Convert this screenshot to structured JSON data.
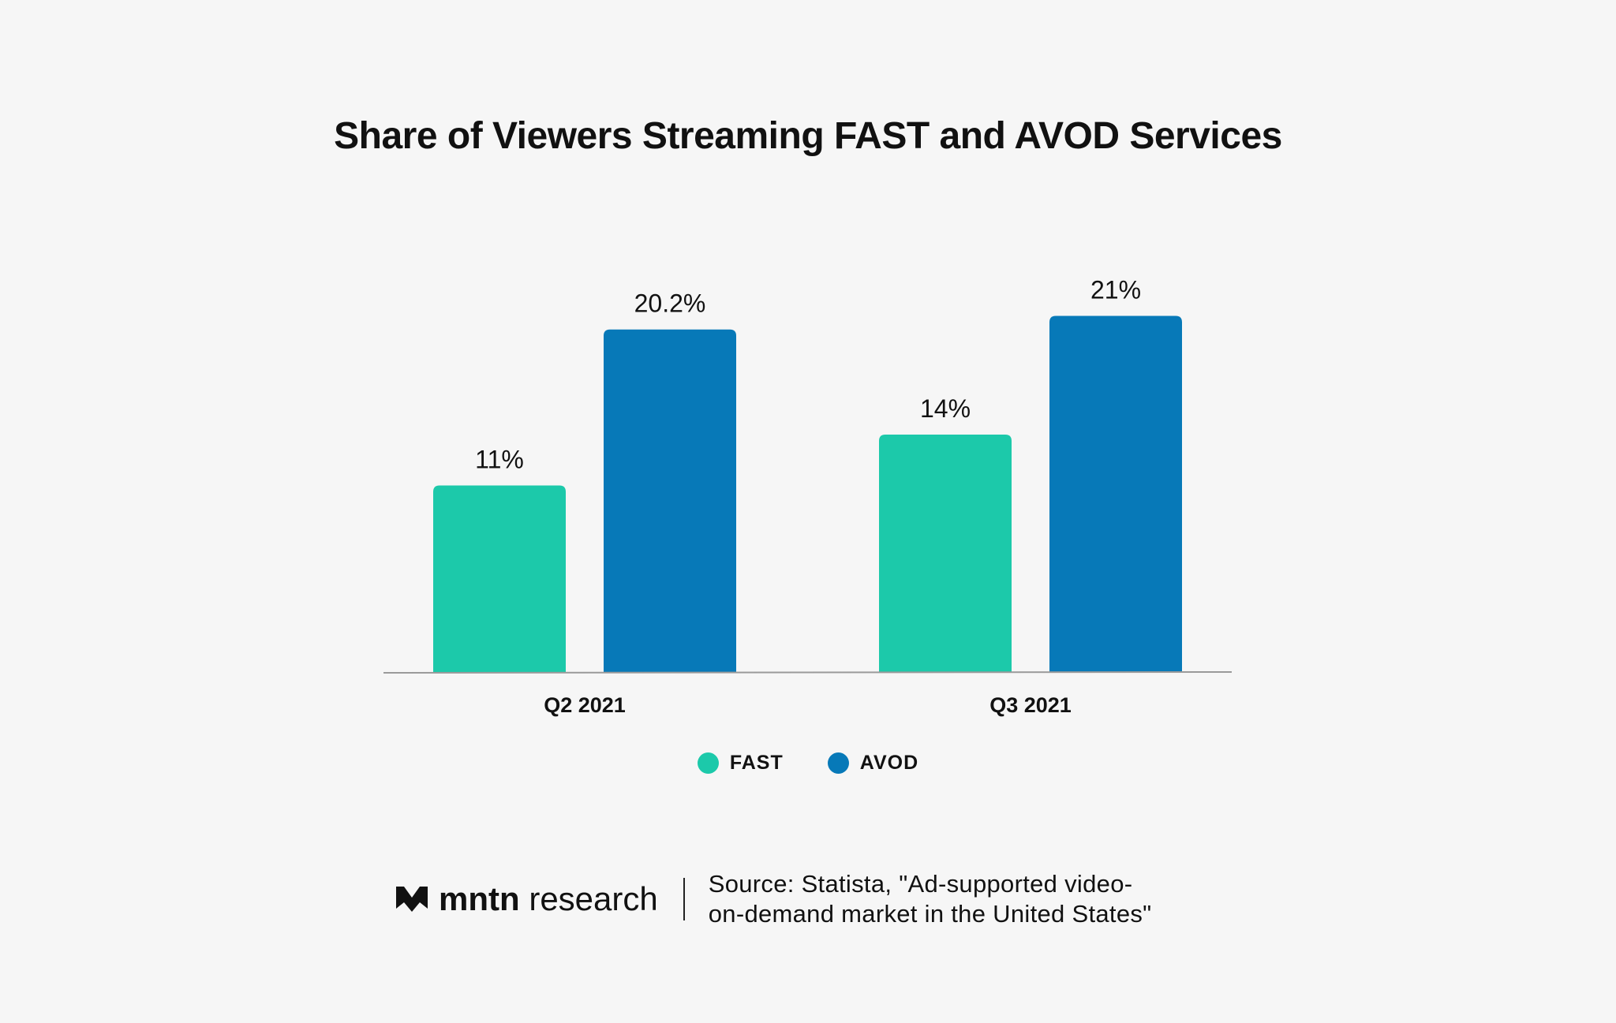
{
  "chart_data": {
    "type": "bar",
    "title": "Share of Viewers Streaming FAST and AVOD Services",
    "categories": [
      "Q2 2021",
      "Q3 2021"
    ],
    "series": [
      {
        "name": "FAST",
        "values": [
          11,
          14
        ],
        "labels": [
          "11%",
          "14%"
        ],
        "color": "#1cc9aa"
      },
      {
        "name": "AVOD",
        "values": [
          20.2,
          21
        ],
        "labels": [
          "20.2%",
          "21%"
        ],
        "color": "#0779b8"
      }
    ],
    "unit": "%",
    "xlabel": "",
    "ylabel": "",
    "ylim": [
      0,
      21
    ],
    "grid": false,
    "legend_position": "bottom"
  },
  "footer": {
    "brand_bold": "mntn",
    "brand_light": "research",
    "source_line1": "Source: Statista, \"Ad-supported video-",
    "source_line2": "on-demand market in the United States\""
  },
  "colors": {
    "background": "#f6f6f6",
    "axis": "#9a9a9a"
  }
}
